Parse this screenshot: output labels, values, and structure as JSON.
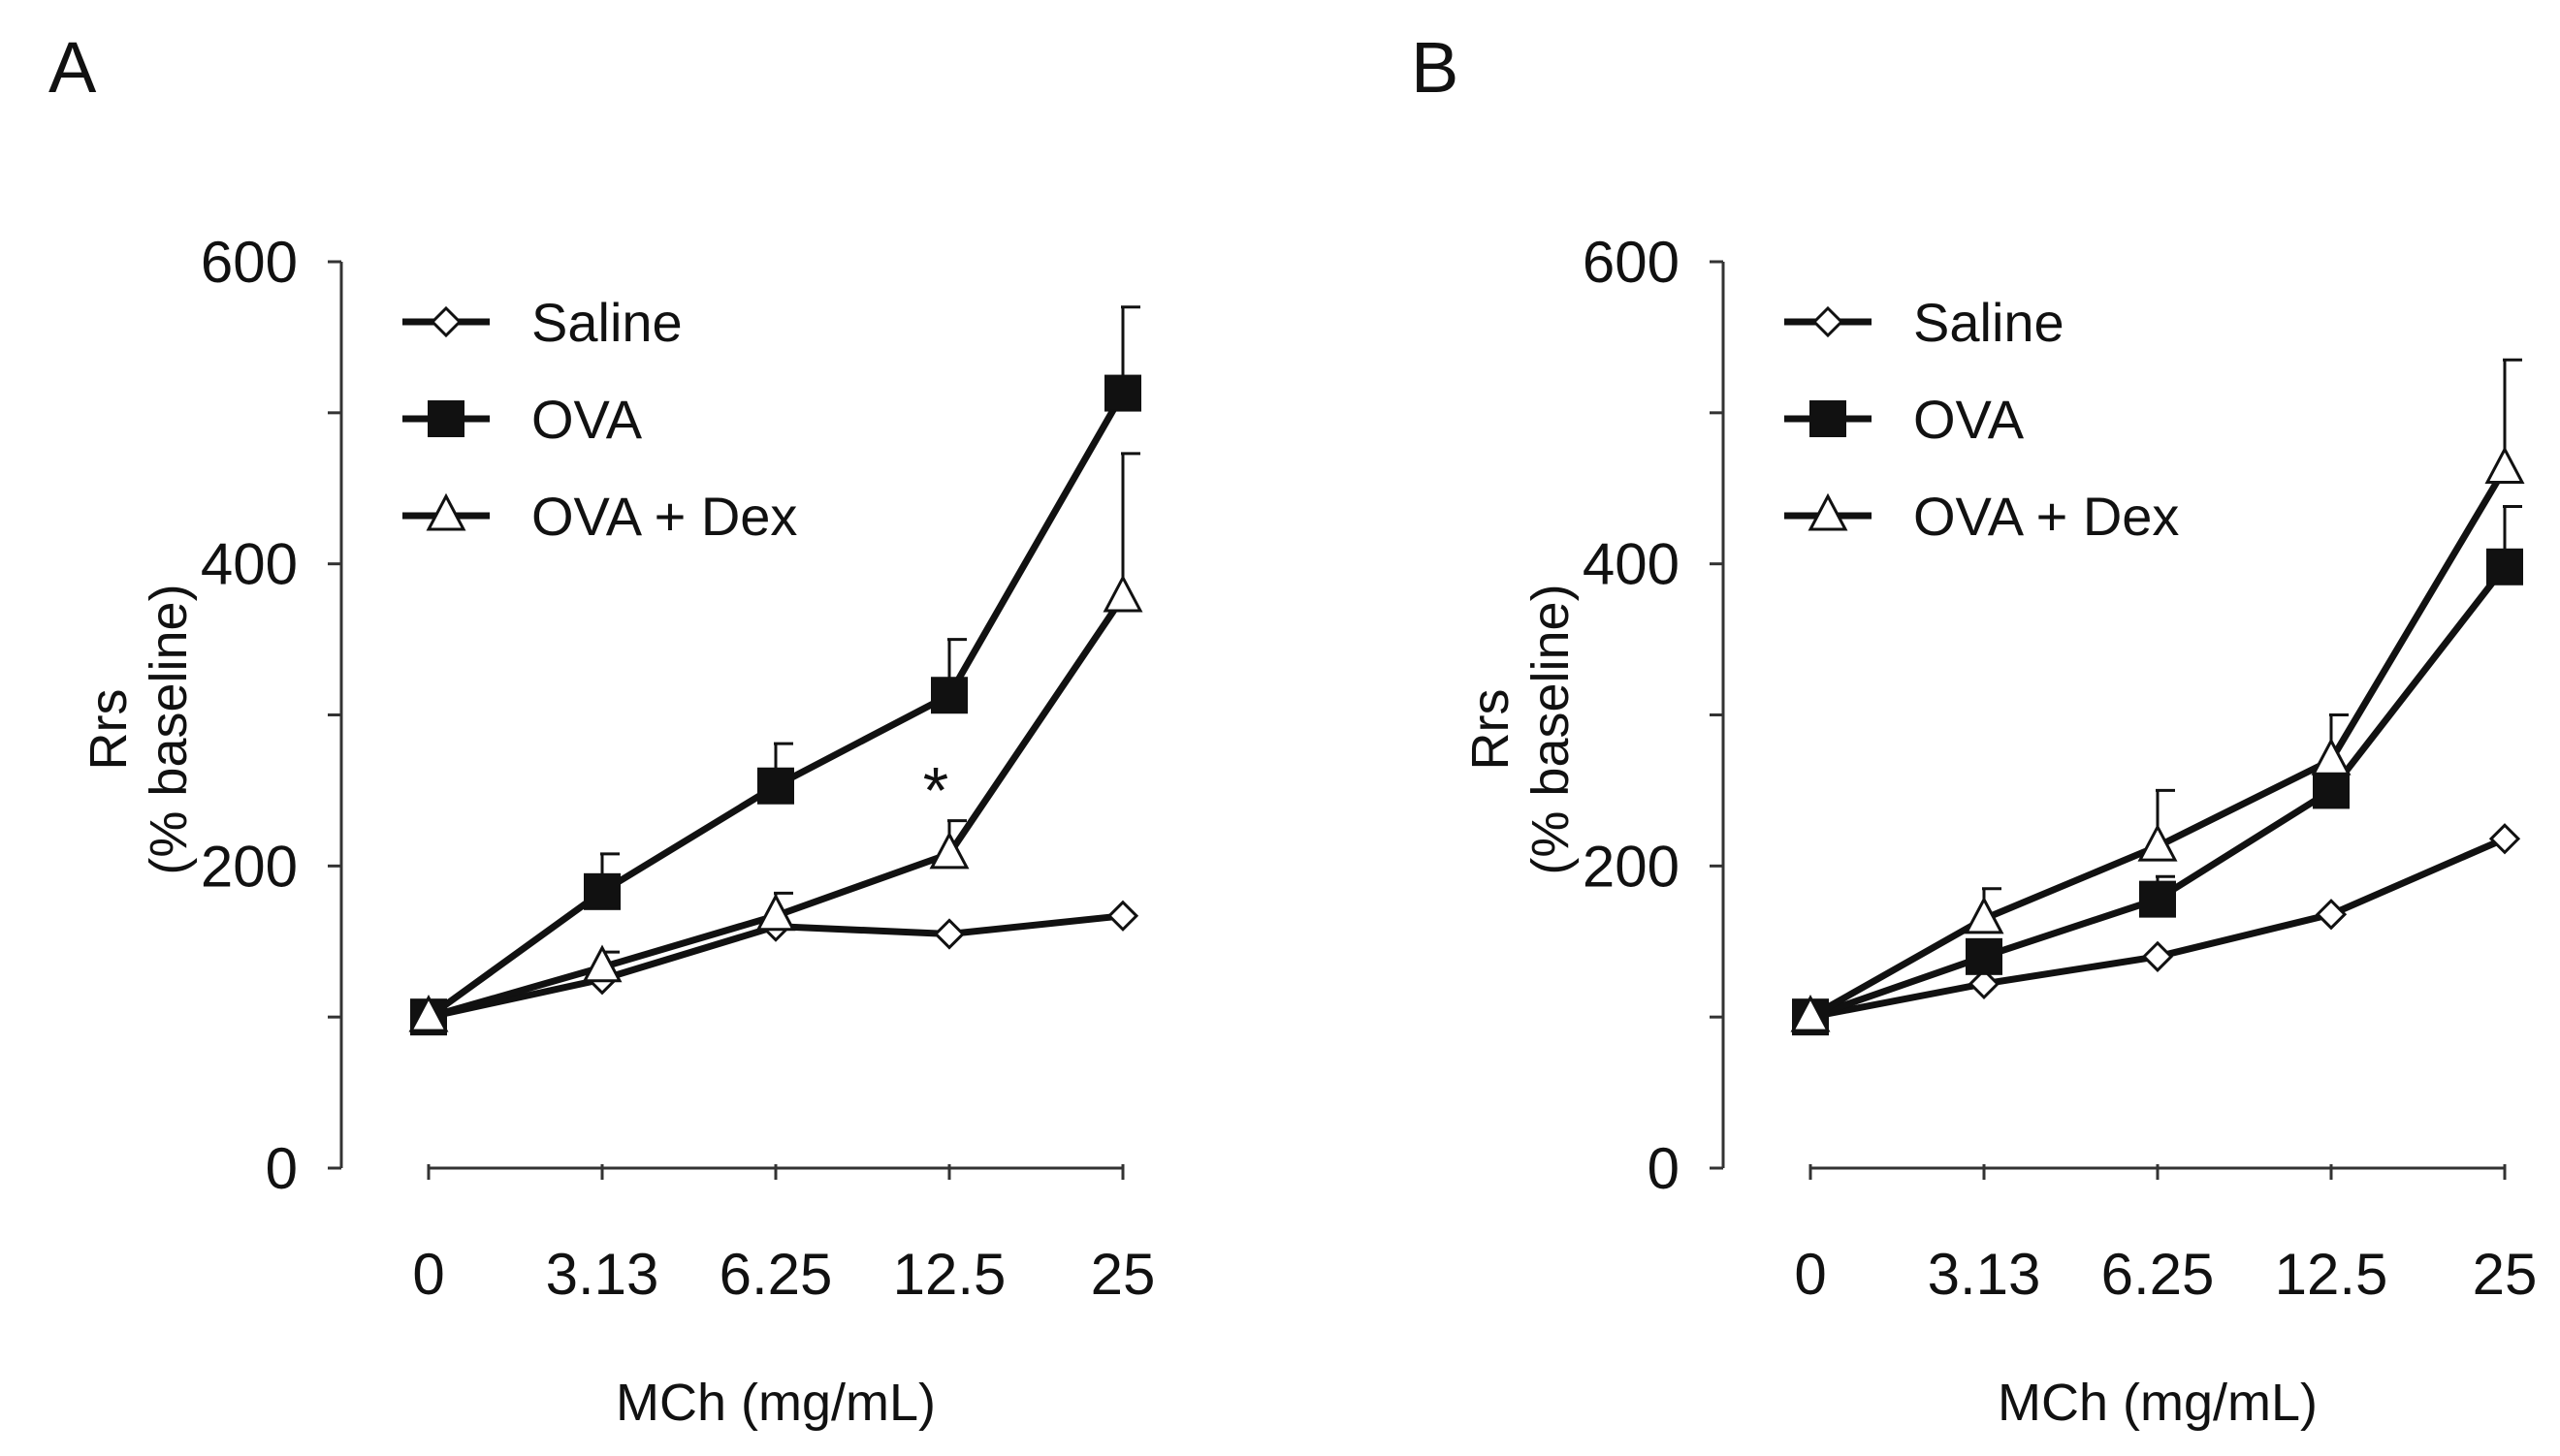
{
  "chart_data": [
    {
      "type": "line",
      "panel_label": "A",
      "xlabel": "MCh (mg/mL)",
      "ylabel": [
        "Rrs",
        "(% baseline)"
      ],
      "categories": [
        "0",
        "3.13",
        "6.25",
        "12.5",
        "25"
      ],
      "ylim": [
        0,
        600
      ],
      "yticks": [
        0,
        200,
        400,
        600
      ],
      "y_minor_ticks": [
        100,
        300,
        500
      ],
      "legend_position": "top-left",
      "series": [
        {
          "name": "Saline",
          "marker": "diamond-open",
          "values": [
            100,
            125,
            160,
            155,
            167
          ],
          "errors": [
            0,
            0,
            0,
            0,
            0
          ]
        },
        {
          "name": "OVA",
          "marker": "square-filled",
          "values": [
            100,
            183,
            253,
            313,
            513
          ],
          "errors": [
            0,
            25,
            28,
            37,
            57
          ]
        },
        {
          "name": "OVA + Dex",
          "marker": "triangle-open",
          "values": [
            100,
            133,
            167,
            208,
            378
          ],
          "errors": [
            0,
            10,
            15,
            22,
            95
          ]
        }
      ],
      "annotations": [
        {
          "text": "*",
          "category": "12.5",
          "series": "OVA + Dex"
        }
      ]
    },
    {
      "type": "line",
      "panel_label": "B",
      "xlabel": "MCh (mg/mL)",
      "ylabel": [
        "Rrs",
        "(% baseline)"
      ],
      "categories": [
        "0",
        "3.13",
        "6.25",
        "12.5",
        "25"
      ],
      "ylim": [
        0,
        600
      ],
      "yticks": [
        0,
        200,
        400,
        600
      ],
      "y_minor_ticks": [
        100,
        300,
        500
      ],
      "legend_position": "top-left",
      "series": [
        {
          "name": "Saline",
          "marker": "diamond-open",
          "values": [
            100,
            122,
            140,
            168,
            218
          ],
          "errors": [
            0,
            0,
            0,
            0,
            0
          ]
        },
        {
          "name": "OVA",
          "marker": "square-filled",
          "values": [
            100,
            140,
            178,
            250,
            398
          ],
          "errors": [
            0,
            10,
            15,
            14,
            40
          ]
        },
        {
          "name": "OVA + Dex",
          "marker": "triangle-open",
          "values": [
            100,
            165,
            213,
            270,
            463
          ],
          "errors": [
            0,
            20,
            37,
            30,
            72
          ]
        }
      ],
      "annotations": []
    }
  ]
}
